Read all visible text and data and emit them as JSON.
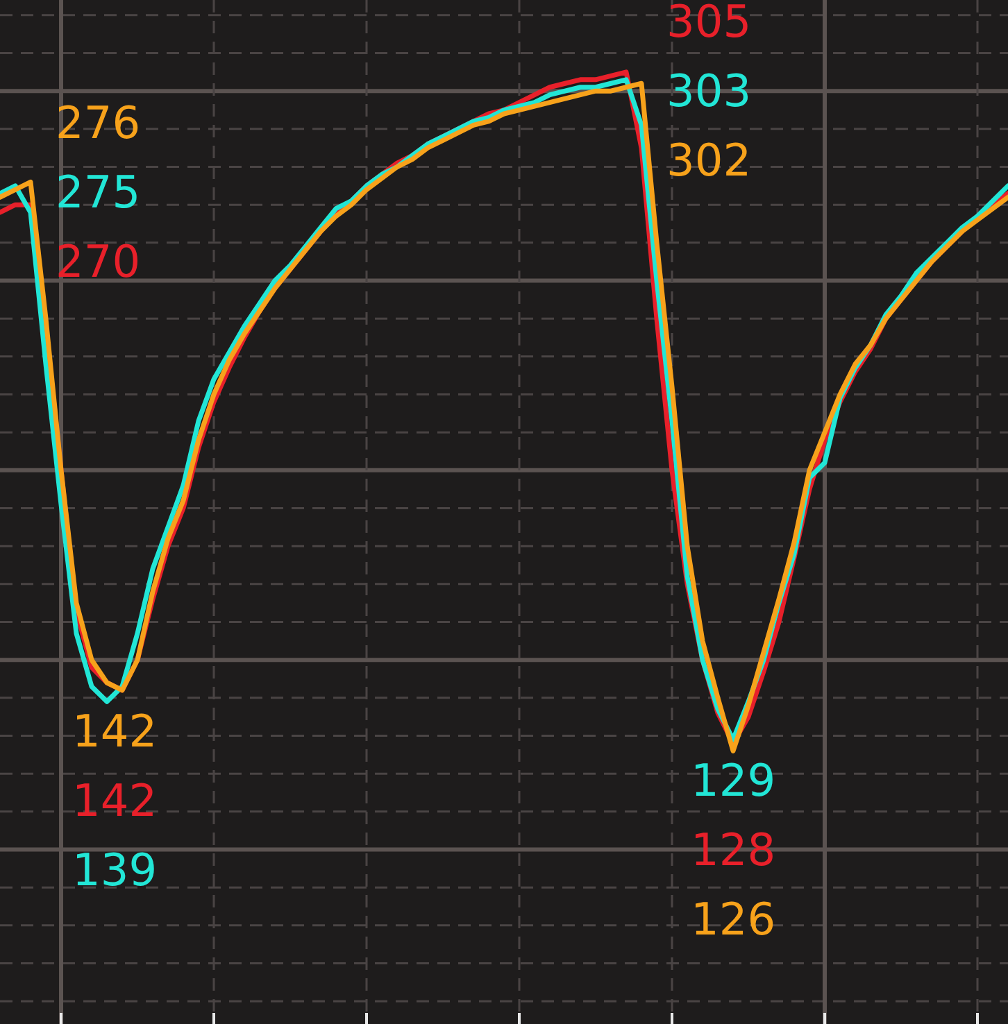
{
  "chart_data": {
    "type": "line",
    "categories": [
      null,
      null,
      null,
      null,
      null,
      null,
      null,
      null,
      null,
      null,
      null,
      null,
      null,
      null,
      null,
      null,
      null,
      null,
      null,
      null,
      null,
      null,
      null,
      null,
      null,
      null,
      null,
      null,
      null,
      null,
      null,
      null,
      null,
      null,
      null,
      null,
      null,
      null,
      null,
      null,
      null,
      null,
      null,
      null,
      null,
      null,
      null,
      null,
      null,
      null,
      null,
      null,
      null,
      null,
      null,
      null,
      null,
      null,
      null,
      null,
      null,
      null,
      null,
      null,
      null,
      null,
      null
    ],
    "series": [
      {
        "color": "#f7a21b",
        "values": [
          272,
          274,
          276,
          240,
          200,
          165,
          150,
          144,
          142,
          150,
          168,
          182,
          192,
          208,
          220,
          229,
          236,
          242,
          248,
          253,
          258,
          263,
          267,
          270,
          274,
          277,
          280,
          282,
          285,
          287,
          289,
          291,
          292,
          294,
          295,
          296,
          297,
          298,
          299,
          300,
          300,
          301,
          302,
          260,
          222,
          180,
          155,
          140,
          126,
          138,
          152,
          166,
          181,
          200,
          210,
          220,
          228,
          233,
          240,
          245,
          250,
          255,
          259,
          263,
          266,
          269,
          272
        ],
        "value_labels": [
          null,
          null,
          "276",
          null,
          null,
          null,
          null,
          null,
          "142",
          null,
          null,
          null,
          null,
          null,
          null,
          null,
          null,
          null,
          null,
          null,
          null,
          null,
          null,
          null,
          null,
          null,
          null,
          null,
          null,
          null,
          null,
          null,
          null,
          null,
          null,
          null,
          null,
          null,
          null,
          null,
          null,
          null,
          "302",
          null,
          null,
          null,
          null,
          null,
          "126",
          null,
          null,
          null,
          null,
          null,
          null,
          null,
          null,
          null,
          null,
          null,
          null,
          null,
          null,
          null,
          null,
          null,
          null
        ]
      },
      {
        "color": "#22e6d6",
        "values": [
          273,
          275,
          268,
          228,
          191,
          157,
          143,
          139,
          143,
          157,
          174,
          185,
          196,
          213,
          224,
          231,
          238,
          244,
          250,
          254,
          259,
          264,
          269,
          271,
          275,
          278,
          280,
          283,
          286,
          288,
          290,
          292,
          293,
          295,
          296,
          297,
          299,
          300,
          301,
          301,
          302,
          303,
          291,
          250,
          213,
          172,
          150,
          137,
          129,
          139,
          150,
          165,
          178,
          198,
          202,
          219,
          227,
          233,
          241,
          246,
          252,
          256,
          260,
          264,
          267,
          271,
          275
        ],
        "value_labels": [
          null,
          "275",
          null,
          null,
          null,
          null,
          null,
          "139",
          null,
          null,
          null,
          null,
          null,
          null,
          null,
          null,
          null,
          null,
          null,
          null,
          null,
          null,
          null,
          null,
          null,
          null,
          null,
          null,
          null,
          null,
          null,
          null,
          null,
          null,
          null,
          null,
          null,
          null,
          null,
          null,
          null,
          "303",
          null,
          null,
          null,
          null,
          null,
          null,
          "129",
          null,
          null,
          null,
          null,
          null,
          null,
          null,
          null,
          null,
          null,
          null,
          null,
          null,
          null,
          null,
          null,
          null,
          null
        ]
      },
      {
        "color": "#e8202a",
        "values": [
          268,
          270,
          270,
          238,
          200,
          163,
          148,
          144,
          142,
          150,
          166,
          180,
          190,
          206,
          218,
          227,
          235,
          242,
          248,
          253,
          258,
          263,
          268,
          271,
          275,
          278,
          281,
          283,
          286,
          288,
          290,
          292,
          294,
          295,
          297,
          299,
          301,
          302,
          303,
          303,
          304,
          305,
          285,
          240,
          200,
          170,
          150,
          136,
          128,
          135,
          147,
          160,
          177,
          195,
          208,
          218,
          226,
          232,
          240,
          245,
          250,
          255,
          259,
          263,
          267,
          270,
          273
        ],
        "value_labels": [
          null,
          "270",
          null,
          null,
          null,
          null,
          null,
          null,
          "142",
          null,
          null,
          null,
          null,
          null,
          null,
          null,
          null,
          null,
          null,
          null,
          null,
          null,
          null,
          null,
          null,
          null,
          null,
          null,
          null,
          null,
          null,
          null,
          null,
          null,
          null,
          null,
          null,
          null,
          null,
          null,
          null,
          "305",
          null,
          null,
          null,
          null,
          null,
          null,
          "128",
          null,
          null,
          null,
          null,
          null,
          null,
          null,
          null,
          null,
          null,
          null,
          null,
          null,
          null,
          null,
          null,
          null,
          null
        ]
      }
    ],
    "ylim": [
      54,
      324
    ],
    "yticks": [
      {
        "value": 60,
        "label": null
      },
      {
        "value": 70,
        "label": null
      },
      {
        "value": 80,
        "label": null
      },
      {
        "value": 90,
        "label": null
      },
      {
        "value": 100,
        "label": null
      },
      {
        "value": 110,
        "label": null
      },
      {
        "value": 120,
        "label": null
      },
      {
        "value": 130,
        "label": null
      },
      {
        "value": 140,
        "label": null
      },
      {
        "value": 150,
        "label": null
      },
      {
        "value": 160,
        "label": null
      },
      {
        "value": 170,
        "label": null
      },
      {
        "value": 180,
        "label": null
      },
      {
        "value": 190,
        "label": null
      },
      {
        "value": 200,
        "label": null
      },
      {
        "value": 210,
        "label": null
      },
      {
        "value": 220,
        "label": null
      },
      {
        "value": 230,
        "label": null
      },
      {
        "value": 240,
        "label": null
      },
      {
        "value": 250,
        "label": null
      },
      {
        "value": 260,
        "label": null
      },
      {
        "value": 270,
        "label": null
      },
      {
        "value": 280,
        "label": null
      },
      {
        "value": 290,
        "label": null
      },
      {
        "value": 300,
        "label": null
      },
      {
        "value": 310,
        "label": null
      },
      {
        "value": 320,
        "label": null
      }
    ],
    "grid": true,
    "legend": false,
    "tick_labels": false,
    "marker": "none"
  }
}
